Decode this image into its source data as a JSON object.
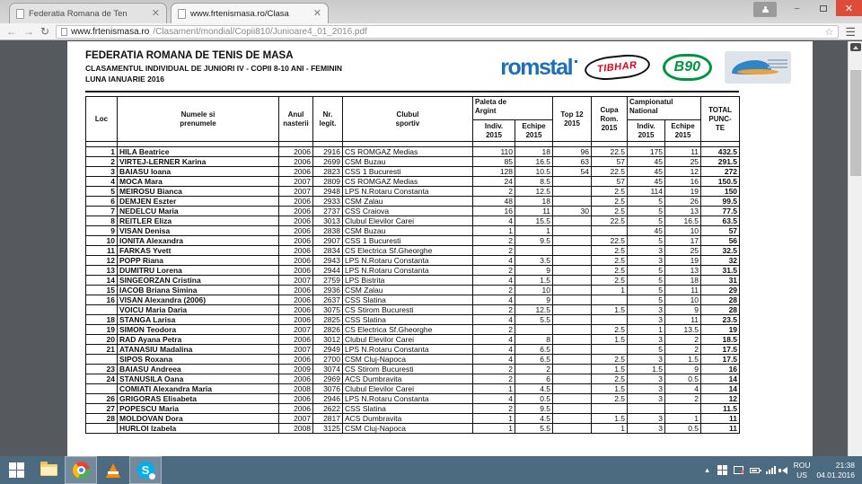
{
  "browser": {
    "tabs": [
      {
        "title": "Federatia Romana de Ten"
      },
      {
        "title": "www.frtenismasa.ro/Clasa"
      }
    ],
    "url_host": "www.frtenismasa.ro",
    "url_path": "/Clasament/mondial/Copii810/Junioare4_01_2016.pdf"
  },
  "doc": {
    "org": "FEDERATIA ROMANA DE TENIS DE MASA",
    "subtitle": "CLASAMENTUL INDIVIDUAL DE JUNIORI IV - COPII 8-10 ANI - FEMININ",
    "period": "LUNA IANUARIE 2016",
    "logos": {
      "romstal": "romstal",
      "tibhar": "TIBHAR",
      "b90": "B90"
    },
    "table": {
      "headers": {
        "loc": "Loc",
        "name": "Numele si\nprenumele",
        "year": "Anul\nnasterii",
        "legit": "Nr.\nlegit.",
        "club": "Clubul\nsportiv",
        "paleta": "Paleta de\nArgint",
        "top12": "Top 12\n2015",
        "cupa": "Cupa\nRom.\n2015",
        "campionat": "Campionatul\nNational",
        "indiv": "Indiv.\n2015",
        "echipe": "Echipe\n2015",
        "total": "TOTAL\nPUNC-\nTE"
      },
      "rows": [
        [
          "1",
          "HILA Beatrice",
          "2006",
          "2916",
          "CS ROMGAZ Medias",
          "110",
          "18",
          "96",
          "22.5",
          "175",
          "11",
          "432.5"
        ],
        [
          "2",
          "VIRTEJ-LERNER Karina",
          "2006",
          "2699",
          "CSM Buzau",
          "85",
          "16.5",
          "63",
          "57",
          "45",
          "25",
          "291.5"
        ],
        [
          "3",
          "BAIASU Ioana",
          "2006",
          "2823",
          "CSS 1 Bucuresti",
          "128",
          "10.5",
          "54",
          "22.5",
          "45",
          "12",
          "272"
        ],
        [
          "4",
          "MOCA Mara",
          "2007",
          "2809",
          "CS ROMGAZ Medias",
          "24",
          "8.5",
          "",
          "57",
          "45",
          "16",
          "150.5"
        ],
        [
          "5",
          "MEIROSU Bianca",
          "2007",
          "2948",
          "LPS N.Rotaru Constanta",
          "2",
          "12.5",
          "",
          "2.5",
          "114",
          "19",
          "150"
        ],
        [
          "6",
          "DEMJEN Eszter",
          "2006",
          "2933",
          "CSM Zalau",
          "48",
          "18",
          "",
          "2.5",
          "5",
          "26",
          "99.5"
        ],
        [
          "7",
          "NEDELCU Maria",
          "2006",
          "2737",
          "CSS Craiova",
          "16",
          "11",
          "30",
          "2.5",
          "5",
          "13",
          "77.5"
        ],
        [
          "8",
          "REITLER Eliza",
          "2006",
          "3013",
          "Clubul Elevilor Carei",
          "4",
          "15.5",
          "",
          "22.5",
          "5",
          "16.5",
          "63.5"
        ],
        [
          "9",
          "VISAN Denisa",
          "2006",
          "2838",
          "CSM Buzau",
          "1",
          "1",
          "",
          "",
          "45",
          "10",
          "57"
        ],
        [
          "10",
          "IONITA Alexandra",
          "2006",
          "2907",
          "CSS 1 Bucuresti",
          "2",
          "9.5",
          "",
          "22.5",
          "5",
          "17",
          "56"
        ],
        [
          "11",
          "FARKAS Yvett",
          "2006",
          "2834",
          "CS Electrica Sf.Gheorghe",
          "2",
          "",
          "",
          "2.5",
          "3",
          "25",
          "32.5"
        ],
        [
          "12",
          "POPP Riana",
          "2006",
          "2943",
          "LPS N.Rotaru Constanta",
          "4",
          "3.5",
          "",
          "2.5",
          "3",
          "19",
          "32"
        ],
        [
          "13",
          "DUMITRU Lorena",
          "2006",
          "2944",
          "LPS N.Rotaru Constanta",
          "2",
          "9",
          "",
          "2.5",
          "5",
          "13",
          "31.5"
        ],
        [
          "14",
          "SINGEORZAN Cristina",
          "2007",
          "2759",
          "LPS Bistrita",
          "4",
          "1.5",
          "",
          "2.5",
          "5",
          "18",
          "31"
        ],
        [
          "15",
          "IACOB Briana Simina",
          "2006",
          "2936",
          "CSM Zalau",
          "2",
          "10",
          "",
          "1",
          "5",
          "11",
          "29"
        ],
        [
          "16",
          "VISAN Alexandra (2006)",
          "2006",
          "2637",
          "CSS Slatina",
          "4",
          "9",
          "",
          "",
          "5",
          "10",
          "28"
        ],
        [
          "",
          "VOICU Maria Daria",
          "2006",
          "3075",
          "CS Stirom Bucuresti",
          "2",
          "12.5",
          "",
          "1.5",
          "3",
          "9",
          "28"
        ],
        [
          "18",
          "STANGA Larisa",
          "2006",
          "2825",
          "CSS Slatina",
          "4",
          "5.5",
          "",
          "",
          "3",
          "11",
          "23.5"
        ],
        [
          "19",
          "SIMON Teodora",
          "2007",
          "2826",
          "CS Electrica Sf.Gheorghe",
          "2",
          "",
          "",
          "2.5",
          "1",
          "13.5",
          "19"
        ],
        [
          "20",
          "RAD Ayana Petra",
          "2006",
          "3012",
          "Clubul Elevilor Carei",
          "4",
          "8",
          "",
          "1.5",
          "3",
          "2",
          "18.5"
        ],
        [
          "21",
          "ATANASIU Madalina",
          "2007",
          "2949",
          "LPS N.Rotaru Constanta",
          "4",
          "6.5",
          "",
          "",
          "5",
          "2",
          "17.5"
        ],
        [
          "",
          "SIPOS Roxana",
          "2006",
          "2700",
          "CSM Cluj-Napoca",
          "4",
          "6.5",
          "",
          "2.5",
          "3",
          "1.5",
          "17.5"
        ],
        [
          "23",
          "BAIASU Andreea",
          "2009",
          "3074",
          "CS Stirom Bucuresti",
          "2",
          "2",
          "",
          "1.5",
          "1.5",
          "9",
          "16"
        ],
        [
          "24",
          "STANUSILA Oana",
          "2006",
          "2969",
          "ACS Dumbravita",
          "2",
          "6",
          "",
          "2.5",
          "3",
          "0.5",
          "14"
        ],
        [
          "",
          "COMIATI Alexandra Maria",
          "2008",
          "3076",
          "Clubul Elevilor Carei",
          "1",
          "4.5",
          "",
          "1.5",
          "3",
          "4",
          "14"
        ],
        [
          "26",
          "GRIGORAS Elisabeta",
          "2006",
          "2946",
          "LPS N.Rotaru Constanta",
          "4",
          "0.5",
          "",
          "2.5",
          "3",
          "2",
          "12"
        ],
        [
          "27",
          "POPESCU Maria",
          "2006",
          "2622",
          "CSS Slatina",
          "2",
          "9.5",
          "",
          "",
          "",
          "",
          "11.5"
        ],
        [
          "28",
          "MOLDOVAN Dora",
          "2007",
          "2817",
          "ACS Dumbravita",
          "1",
          "4.5",
          "",
          "1.5",
          "3",
          "1",
          "11"
        ],
        [
          "",
          "HURLOI Izabela",
          "2008",
          "3125",
          "CSM Cluj-Napoca",
          "1",
          "5.5",
          "",
          "1",
          "3",
          "0.5",
          "11"
        ]
      ]
    }
  },
  "taskbar": {
    "lang1": "ROU",
    "lang2": "US",
    "time": "21:38",
    "date": "04.01.2016"
  },
  "colors": {
    "romstal_blue": "#1c6fb8",
    "tibhar_red": "#e2001a",
    "b90_green": "#009540",
    "taskbar_bg": "#4c6a80",
    "close_red": "#dd4b39",
    "pdf_background": "#56595e"
  },
  "skype_letter": "S"
}
